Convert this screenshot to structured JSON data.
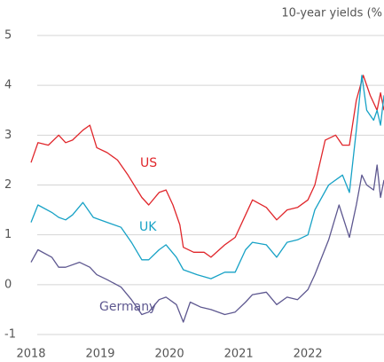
{
  "chart_data": {
    "type": "line",
    "title": "10-year yields (%",
    "xlim": [
      2018,
      2023.1
    ],
    "xticks": [
      2018,
      2019,
      2020,
      2021,
      2022
    ],
    "ylim": [
      -1,
      5
    ],
    "yticks": [
      -1,
      0,
      1,
      2,
      3,
      4,
      5
    ],
    "grid": true,
    "series": [
      {
        "name": "US",
        "color": "#e0262b",
        "x": [
          2018.0,
          2018.1,
          2018.25,
          2018.4,
          2018.5,
          2018.6,
          2018.75,
          2018.85,
          2018.95,
          2019.1,
          2019.25,
          2019.4,
          2019.6,
          2019.7,
          2019.85,
          2019.95,
          2020.05,
          2020.15,
          2020.2,
          2020.35,
          2020.5,
          2020.6,
          2020.8,
          2020.95,
          2021.1,
          2021.2,
          2021.4,
          2021.55,
          2021.7,
          2021.85,
          2022.0,
          2022.1,
          2022.25,
          2022.4,
          2022.5,
          2022.6,
          2022.7,
          2022.8,
          2022.9,
          2023.0,
          2023.05,
          2023.1
        ],
        "values": [
          2.45,
          2.85,
          2.8,
          3.0,
          2.85,
          2.9,
          3.1,
          3.2,
          2.75,
          2.65,
          2.5,
          2.2,
          1.75,
          1.6,
          1.85,
          1.9,
          1.6,
          1.2,
          0.75,
          0.65,
          0.65,
          0.55,
          0.8,
          0.95,
          1.4,
          1.7,
          1.55,
          1.3,
          1.5,
          1.55,
          1.7,
          2.0,
          2.9,
          3.0,
          2.8,
          2.8,
          3.7,
          4.2,
          3.8,
          3.5,
          3.85,
          3.5
        ]
      },
      {
        "name": "UK",
        "color": "#17a2c6",
        "x": [
          2018.0,
          2018.1,
          2018.3,
          2018.4,
          2018.5,
          2018.6,
          2018.75,
          2018.9,
          2019.1,
          2019.3,
          2019.45,
          2019.6,
          2019.7,
          2019.85,
          2019.95,
          2020.1,
          2020.2,
          2020.4,
          2020.6,
          2020.8,
          2020.95,
          2021.1,
          2021.2,
          2021.4,
          2021.55,
          2021.7,
          2021.85,
          2022.0,
          2022.1,
          2022.3,
          2022.5,
          2022.6,
          2022.7,
          2022.78,
          2022.85,
          2022.95,
          2023.0,
          2023.05,
          2023.1
        ],
        "values": [
          1.25,
          1.6,
          1.45,
          1.35,
          1.3,
          1.4,
          1.65,
          1.35,
          1.25,
          1.15,
          0.85,
          0.5,
          0.5,
          0.7,
          0.8,
          0.55,
          0.3,
          0.2,
          0.12,
          0.25,
          0.25,
          0.7,
          0.85,
          0.8,
          0.55,
          0.85,
          0.9,
          1.0,
          1.5,
          2.0,
          2.2,
          1.85,
          3.1,
          4.2,
          3.5,
          3.3,
          3.5,
          3.2,
          3.8
        ]
      },
      {
        "name": "Germany",
        "color": "#5e5890",
        "x": [
          2018.0,
          2018.1,
          2018.3,
          2018.4,
          2018.5,
          2018.7,
          2018.85,
          2018.95,
          2019.1,
          2019.3,
          2019.45,
          2019.6,
          2019.7,
          2019.85,
          2019.95,
          2020.1,
          2020.2,
          2020.3,
          2020.45,
          2020.6,
          2020.8,
          2020.95,
          2021.1,
          2021.2,
          2021.4,
          2021.55,
          2021.7,
          2021.85,
          2022.0,
          2022.1,
          2022.3,
          2022.45,
          2022.6,
          2022.7,
          2022.78,
          2022.85,
          2022.95,
          2023.0,
          2023.05,
          2023.1
        ],
        "values": [
          0.45,
          0.7,
          0.55,
          0.35,
          0.35,
          0.45,
          0.35,
          0.2,
          0.1,
          -0.05,
          -0.3,
          -0.6,
          -0.55,
          -0.3,
          -0.25,
          -0.4,
          -0.75,
          -0.35,
          -0.45,
          -0.5,
          -0.6,
          -0.55,
          -0.35,
          -0.2,
          -0.15,
          -0.4,
          -0.25,
          -0.3,
          -0.1,
          0.2,
          0.9,
          1.6,
          0.95,
          1.6,
          2.2,
          2.0,
          1.9,
          2.4,
          1.75,
          2.1
        ]
      }
    ]
  }
}
